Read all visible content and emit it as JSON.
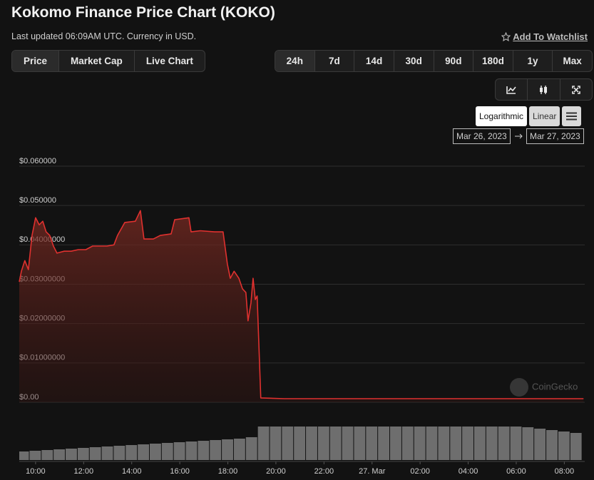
{
  "header": {
    "title": "Kokomo Finance Price Chart (KOKO)",
    "subtitle": "Last updated 06:09AM UTC. Currency in USD.",
    "watchlist": "Add To Watchlist"
  },
  "tabs": [
    "Price",
    "Market Cap",
    "Live Chart"
  ],
  "ranges": [
    "24h",
    "7d",
    "14d",
    "30d",
    "90d",
    "180d",
    "1y",
    "Max"
  ],
  "scale_buttons": [
    "Logarithmic",
    "Linear"
  ],
  "date_range": [
    "Mar 26, 2023",
    "Mar 27, 2023"
  ],
  "watermark": "CoinGecko",
  "chart_data": {
    "type": "area",
    "color": "#e0312f",
    "x": [
      9.32,
      9.41,
      9.55,
      9.7,
      9.85,
      10.0,
      10.15,
      10.3,
      10.44,
      10.59,
      10.74,
      10.89,
      11.19,
      11.48,
      11.78,
      12.09,
      12.37,
      12.97,
      13.26,
      13.41,
      13.71,
      14.15,
      14.36,
      14.51,
      14.9,
      15.19,
      15.64,
      15.79,
      16.38,
      16.47,
      16.85,
      17.45,
      17.8,
      17.98,
      18.1,
      18.26,
      18.46,
      18.61,
      18.75,
      18.84,
      18.96,
      19.05,
      19.14,
      19.22,
      19.37,
      20.35,
      26.3,
      32.8
    ],
    "values": [
      0.0306,
      0.0333,
      0.036,
      0.0337,
      0.0424,
      0.0469,
      0.0451,
      0.046,
      0.0433,
      0.0424,
      0.0397,
      0.0379,
      0.0384,
      0.0384,
      0.0388,
      0.0388,
      0.0397,
      0.0397,
      0.04,
      0.0424,
      0.0457,
      0.046,
      0.0487,
      0.0415,
      0.0415,
      0.0424,
      0.0428,
      0.0464,
      0.0469,
      0.0433,
      0.0436,
      0.0433,
      0.0433,
      0.0351,
      0.0315,
      0.0333,
      0.0315,
      0.0288,
      0.0279,
      0.0207,
      0.0252,
      0.0315,
      0.0261,
      0.027,
      0.0011,
      0.0009,
      0.0009,
      0.0009
    ],
    "xlim": [
      9.32,
      32.85
    ],
    "xticks": [
      {
        "value": 10,
        "label": "10:00"
      },
      {
        "value": 12,
        "label": "12:00"
      },
      {
        "value": 14,
        "label": "14:00"
      },
      {
        "value": 16,
        "label": "16:00"
      },
      {
        "value": 18,
        "label": "18:00"
      },
      {
        "value": 20,
        "label": "20:00"
      },
      {
        "value": 22,
        "label": "22:00"
      },
      {
        "value": 24,
        "label": "27. Mar"
      },
      {
        "value": 26,
        "label": "02:00"
      },
      {
        "value": 28,
        "label": "04:00"
      },
      {
        "value": 30,
        "label": "06:00"
      },
      {
        "value": 32,
        "label": "08:00"
      }
    ],
    "ylim": [
      0,
      0.06
    ],
    "yticks": [
      {
        "value": 0,
        "label": "$0.00"
      },
      {
        "value": 0.01,
        "label": "$0.01000000"
      },
      {
        "value": 0.02,
        "label": "$0.02000000"
      },
      {
        "value": 0.03,
        "label": "$0.03000000"
      },
      {
        "value": 0.04,
        "label": "$0.04000000"
      },
      {
        "value": 0.05,
        "label": "$0.050000"
      },
      {
        "value": 0.06,
        "label": "$0.060000"
      }
    ],
    "grid": true,
    "volume": {
      "color": "#6e6e6e",
      "ylim": [
        0,
        100
      ],
      "x": [
        9.5,
        10,
        10.5,
        11,
        11.5,
        12,
        12.5,
        13,
        13.5,
        14,
        14.5,
        15,
        15.5,
        16,
        16.5,
        17,
        17.5,
        18,
        18.5,
        19,
        19.5,
        20,
        20.5,
        21,
        21.5,
        22,
        22.5,
        23,
        23.5,
        24,
        24.5,
        25,
        25.5,
        26,
        26.5,
        27,
        27.5,
        28,
        28.5,
        29,
        29.5,
        30,
        30.5,
        31,
        31.5,
        32,
        32.5
      ],
      "values": [
        24,
        26,
        28,
        30,
        32,
        34,
        36,
        38,
        40,
        42,
        44,
        46,
        48,
        50,
        52,
        54,
        56,
        58,
        60,
        64,
        94,
        94,
        94,
        94,
        94,
        94,
        94,
        94,
        94,
        94,
        94,
        94,
        94,
        94,
        94,
        94,
        94,
        94,
        94,
        94,
        94,
        94,
        92,
        88,
        84,
        80,
        76
      ]
    }
  }
}
